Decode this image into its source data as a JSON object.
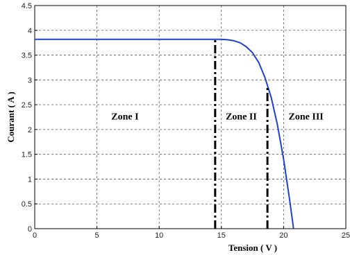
{
  "chart_data": {
    "type": "line",
    "xlabel": "Tension ( V )",
    "ylabel": "Courant ( A )",
    "xlim": [
      0,
      25
    ],
    "ylim": [
      0,
      4.5
    ],
    "x_ticks": [
      0,
      5,
      10,
      15,
      20,
      25
    ],
    "y_ticks": [
      0,
      0.5,
      1,
      1.5,
      2,
      2.5,
      3,
      3.5,
      4,
      4.5
    ],
    "grid": true,
    "series": [
      {
        "color": "#1f3fd0",
        "x": [
          0,
          5,
          10,
          14,
          15,
          15.5,
          16,
          16.5,
          17,
          17.5,
          18,
          18.5,
          19,
          19.5,
          20,
          20.5,
          20.8
        ],
        "y": [
          3.82,
          3.82,
          3.82,
          3.82,
          3.82,
          3.81,
          3.79,
          3.75,
          3.67,
          3.55,
          3.35,
          3.05,
          2.65,
          2.1,
          1.4,
          0.55,
          0.0
        ]
      }
    ],
    "boundaries": [
      14.5,
      18.7
    ],
    "boundary_style": "dash-dot",
    "zones": [
      {
        "label": "Zone I",
        "x": 7.25,
        "y": 2.2
      },
      {
        "label": "Zone II",
        "x": 16.6,
        "y": 2.2
      },
      {
        "label": "Zone III",
        "x": 21.8,
        "y": 2.2
      }
    ]
  }
}
